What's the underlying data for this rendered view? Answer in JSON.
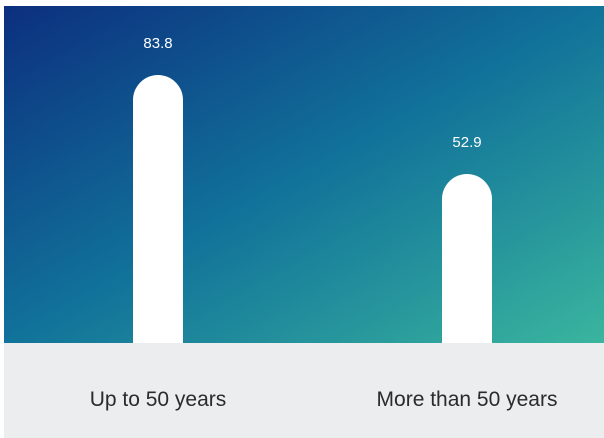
{
  "chart_data": {
    "type": "bar",
    "categories": [
      "Up to 50 years",
      "More than 50 years"
    ],
    "values": [
      83.8,
      52.9
    ],
    "data_labels": [
      "83.8",
      "52.9"
    ],
    "ylim": [
      0,
      100
    ],
    "grid": false,
    "legend": "none",
    "colors": {
      "gradient_start": "#0c2f7f",
      "gradient_mid": "#11729a",
      "gradient_end": "#3ab59e",
      "bar": "#ffffff",
      "value_label": "#ffffff",
      "label_band": "#ebedef",
      "category_text": "#2b2b2b"
    }
  }
}
